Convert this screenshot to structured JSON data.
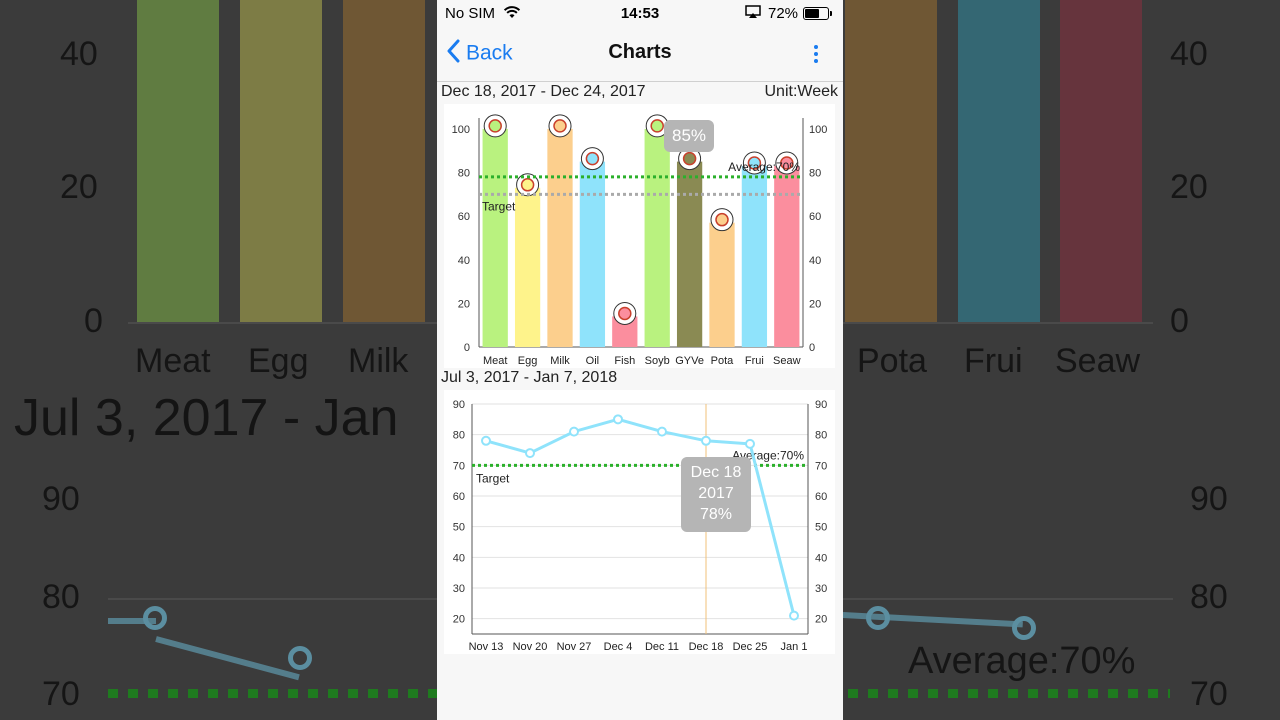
{
  "status_bar": {
    "carrier": "No SIM",
    "time": "14:53",
    "battery": "72%",
    "battery_level": 0.72
  },
  "nav": {
    "back_label": "Back",
    "title": "Charts"
  },
  "bar_section": {
    "range": "Dec 18, 2017 - Dec 24, 2017",
    "unit": "Unit:Week",
    "tooltip": "85%",
    "average_label": "Average:70%",
    "target_label": "Target"
  },
  "line_section": {
    "range": "Jul 3, 2017 - Jan 7, 2018",
    "average_label": "Average:70%",
    "target_label": "Target",
    "tooltip": {
      "date": "Dec 18",
      "year": "2017",
      "value": "78%"
    }
  },
  "chart_data": [
    {
      "type": "bar",
      "categories": [
        "Meat",
        "Egg",
        "Milk",
        "Oil",
        "Fish",
        "Soyb",
        "GYVe",
        "Pota",
        "Frui",
        "Seaw"
      ],
      "values": [
        100,
        73,
        100,
        85,
        14,
        100,
        85,
        57,
        83,
        83
      ],
      "colors": [
        "#b9f27f",
        "#fef38b",
        "#fccf8d",
        "#8fe3fb",
        "#fb8e9e",
        "#b9f27f",
        "#8a8a53",
        "#fccf8d",
        "#8fe3fb",
        "#fb8e9e"
      ],
      "icons": [
        "meat-icon",
        "egg-icon",
        "milk-icon",
        "oil-icon",
        "fish-icon",
        "soybean-icon",
        "vegetable-icon",
        "potato-icon",
        "fruit-icon",
        "seaweed-icon"
      ],
      "ylim": [
        0,
        105
      ],
      "yticks": [
        0,
        20,
        40,
        60,
        80,
        100
      ],
      "target": 78,
      "average": 70,
      "grid": false
    },
    {
      "type": "line",
      "x": [
        "Nov 13",
        "Nov 20",
        "Nov 27",
        "Dec 4",
        "Dec 11",
        "Dec 18",
        "Dec 25",
        "Jan 1"
      ],
      "values": [
        78,
        74,
        81,
        85,
        81,
        78,
        77,
        21
      ],
      "ylim": [
        15,
        90
      ],
      "yticks": [
        20,
        30,
        40,
        50,
        60,
        70,
        80,
        90
      ],
      "target": 70,
      "average": 70,
      "highlight": "Dec 18",
      "grid": true
    }
  ],
  "colors": {
    "ios_blue": "#1a7cf0",
    "target_green": "#2bb02b",
    "average_gray": "#aaaaaa",
    "line_blue": "#8fe3fb"
  },
  "background": {
    "tick_labels_top": [
      "40",
      "20",
      "0"
    ],
    "category_labels": [
      "Meat",
      "Egg",
      "Milk",
      "Pota",
      "Frui",
      "Seaw"
    ],
    "range_text": "Jul 3, 2017 - Jan",
    "tick_labels_bottom": [
      "90",
      "80",
      "70"
    ],
    "average_text": "Average:70%"
  }
}
